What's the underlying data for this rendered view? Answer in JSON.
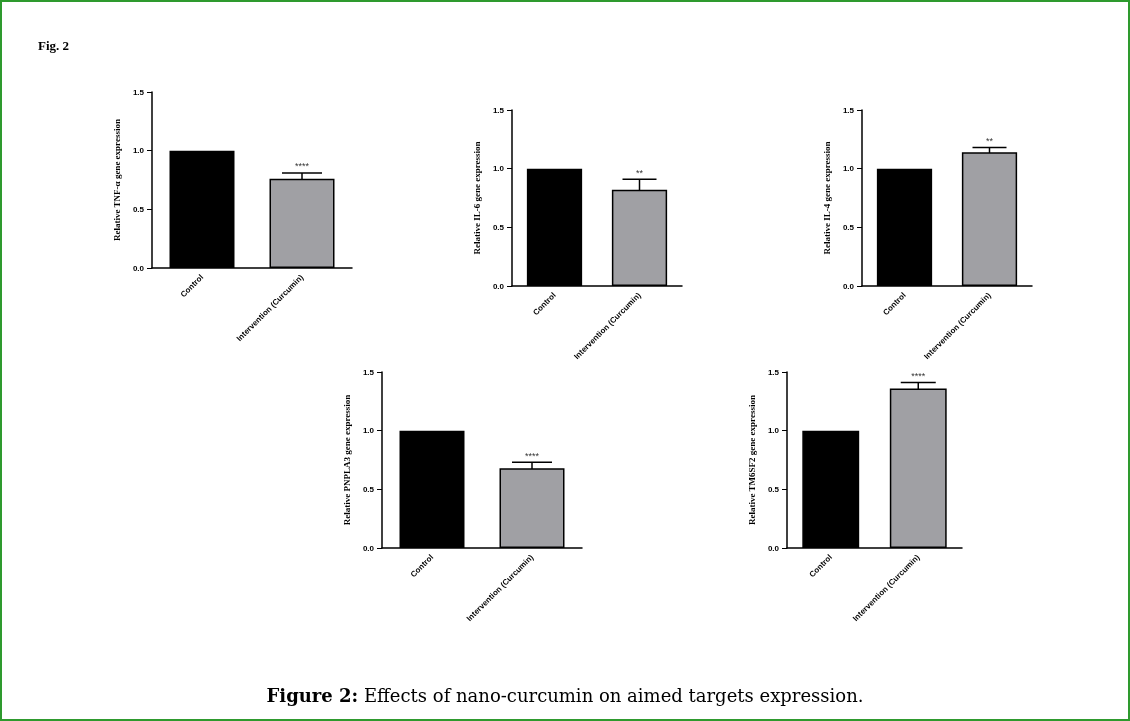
{
  "chart_data": [
    {
      "type": "bar",
      "title": "Fig. 2",
      "ylabel": "Relative TNF-α gene expression",
      "categories": [
        "Control",
        "Intervention (Curcumin)"
      ],
      "values": [
        1,
        0.76
      ],
      "colors": [
        "#000000",
        "#a0a0a4"
      ],
      "errors": [
        null,
        0.05
      ],
      "ylim": [
        0,
        1.5
      ],
      "yticks": [
        {
          "value": 0,
          "label": "0.0"
        },
        {
          "value": 0.5,
          "label": "0.5"
        },
        {
          "value": 1,
          "label": "1.0"
        },
        {
          "value": 1.5,
          "label": "1.5"
        }
      ],
      "annotations": [
        {
          "text": "****",
          "x": "Intervention (Curcumin)",
          "y": 0.81
        },
        "Figure 2: Effects of nano-curcumin on aimed targets expression."
      ]
    },
    {
      "type": "bar",
      "ylabel": "Relative IL-6 gene expression",
      "categories": [
        "Control",
        "Intervention (Curcumin)"
      ],
      "values": [
        1,
        0.82
      ],
      "colors": [
        "#000000",
        "#a0a0a4"
      ],
      "errors": [
        null,
        0.09
      ],
      "ylim": [
        0,
        1.5
      ],
      "yticks": [
        {
          "value": 0,
          "label": "0.0"
        },
        {
          "value": 0.5,
          "label": "0.5"
        },
        {
          "value": 1,
          "label": "1.0"
        },
        {
          "value": 1.5,
          "label": "1.5"
        }
      ],
      "annotations": [
        {
          "text": "**",
          "x": "Intervention (Curcumin)",
          "y": 0.91
        }
      ]
    },
    {
      "type": "bar",
      "ylabel": "Relative IL-4 gene expression",
      "categories": [
        "Control",
        "Intervention (Curcumin)"
      ],
      "values": [
        1,
        1.14
      ],
      "colors": [
        "#000000",
        "#a0a0a4"
      ],
      "errors": [
        null,
        0.04
      ],
      "ylim": [
        0,
        1.5
      ],
      "yticks": [
        {
          "value": 0,
          "label": "0.0"
        },
        {
          "value": 0.5,
          "label": "0.5"
        },
        {
          "value": 1,
          "label": "1.0"
        },
        {
          "value": 1.5,
          "label": "1.5"
        }
      ],
      "annotations": [
        {
          "text": "**",
          "x": "Intervention (Curcumin)",
          "y": 1.18
        }
      ]
    },
    {
      "type": "bar",
      "ylabel": "Relative PNPLA3 gene expression",
      "categories": [
        "Control",
        "Intervention (Curcumin)"
      ],
      "values": [
        1,
        0.68
      ],
      "colors": [
        "#000000",
        "#a0a0a4"
      ],
      "errors": [
        null,
        0.05
      ],
      "ylim": [
        0,
        1.5
      ],
      "yticks": [
        {
          "value": 0,
          "label": "0.0"
        },
        {
          "value": 0.5,
          "label": "0.5"
        },
        {
          "value": 1,
          "label": "1.0"
        },
        {
          "value": 1.5,
          "label": "1.5"
        }
      ],
      "annotations": [
        {
          "text": "****",
          "x": "Intervention (Curcumin)",
          "y": 0.73
        }
      ]
    },
    {
      "type": "bar",
      "ylabel": "Relative TM6SF2 gene expression",
      "categories": [
        "Control",
        "Intervention (Curcumin)"
      ],
      "values": [
        1,
        1.36
      ],
      "colors": [
        "#000000",
        "#a0a0a4"
      ],
      "errors": [
        null,
        0.05
      ],
      "ylim": [
        0,
        1.5
      ],
      "yticks": [
        {
          "value": 0,
          "label": "0.0"
        },
        {
          "value": 0.5,
          "label": "0.5"
        },
        {
          "value": 1,
          "label": "1.0"
        },
        {
          "value": 1.5,
          "label": "1.5"
        }
      ],
      "annotations": [
        {
          "text": "****",
          "x": "Intervention (Curcumin)",
          "y": 1.41
        }
      ]
    }
  ]
}
